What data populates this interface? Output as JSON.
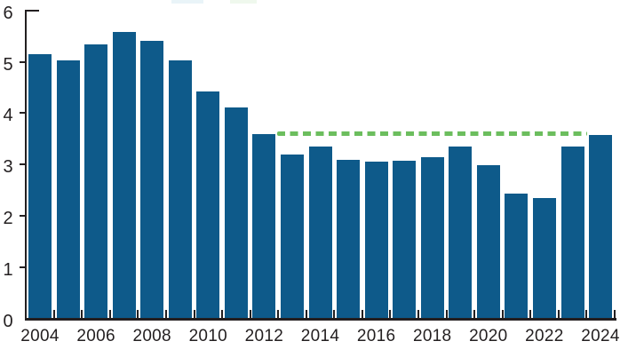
{
  "chart_data": {
    "type": "bar",
    "title": "",
    "categories": [
      "2004",
      "2005",
      "2006",
      "2007",
      "2008",
      "2009",
      "2010",
      "2011",
      "2012",
      "2013",
      "2014",
      "2015",
      "2016",
      "2017",
      "2018",
      "2019",
      "2020",
      "2021",
      "2022",
      "2023",
      "2024"
    ],
    "values": [
      5.15,
      5.02,
      5.33,
      5.58,
      5.41,
      5.02,
      4.42,
      4.11,
      3.6,
      3.19,
      3.35,
      3.1,
      3.06,
      3.08,
      3.14,
      3.35,
      2.99,
      2.44,
      2.35,
      3.35,
      3.58
    ],
    "bar_color": "#0E5A8A",
    "reference_line": {
      "level": 3.6,
      "from": "2012",
      "to": "2024",
      "style": "dashed",
      "color": "#6CBE5E"
    },
    "xlabel": "",
    "ylabel": "",
    "ylim": [
      0,
      6
    ],
    "ytick_labels": [
      "0",
      "1",
      "2",
      "3",
      "4",
      "5",
      "6"
    ],
    "xtick_labels": [
      "2004",
      "2006",
      "2008",
      "2010",
      "2012",
      "2014",
      "2016",
      "2018",
      "2020",
      "2022",
      "2024"
    ],
    "grid": false,
    "legend_position": "none",
    "axis_color": "#231F20",
    "background_color": "#FFFFFF"
  }
}
